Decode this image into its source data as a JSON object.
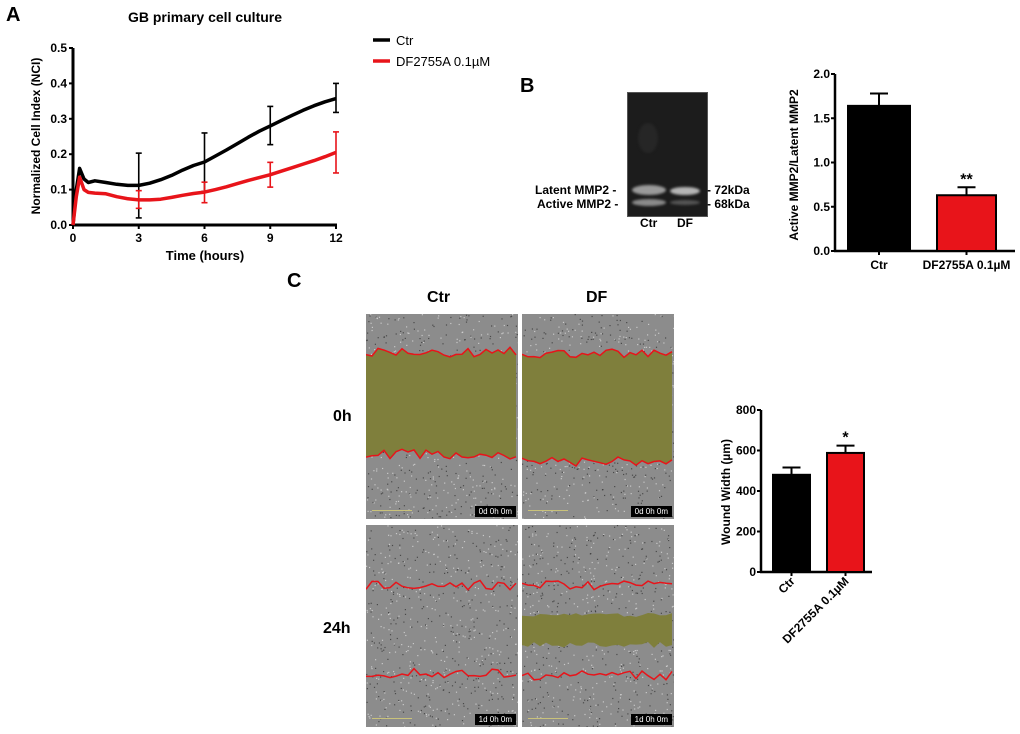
{
  "panels": {
    "A": {
      "letter": "A"
    },
    "B": {
      "letter": "B"
    },
    "C": {
      "letter": "C"
    }
  },
  "gel": {
    "left_labels": [
      "Latent MMP2 -",
      "Active MMP2 -"
    ],
    "right_labels": [
      "- 72kDa",
      "- 68kDa"
    ],
    "lanes": [
      "Ctr",
      "DF"
    ]
  },
  "microscopy": {
    "columns": [
      "Ctr",
      "DF"
    ],
    "rows": [
      "0h",
      "24h"
    ],
    "timestamps": [
      [
        "0d 0h 0m",
        "0d 0h 0m"
      ],
      [
        "1d 0h 0m",
        "1d 0h 0m"
      ]
    ],
    "colors": {
      "wound_fill": "#7f7f3c",
      "wound_edge": "#e8141a",
      "background": "#8c8c8c"
    }
  },
  "chart_data": [
    {
      "id": "A",
      "type": "line",
      "title": "GB primary cell culture",
      "xlabel": "Time (hours)",
      "ylabel": "Normalized Cell Index (NCI)",
      "xlim": [
        0,
        12
      ],
      "ylim": [
        0,
        0.5
      ],
      "xticks": [
        "0",
        "3",
        "6",
        "9",
        "12"
      ],
      "yticks": [
        "0.0",
        "0.1",
        "0.2",
        "0.3",
        "0.4",
        "0.5"
      ],
      "legend_position": "right",
      "series": [
        {
          "name": "Ctr",
          "color": "#000000",
          "x": [
            0,
            0.15,
            0.3,
            0.5,
            0.7,
            1,
            1.5,
            2,
            2.5,
            3,
            3.5,
            4,
            4.5,
            5,
            5.5,
            6,
            6.5,
            7,
            7.5,
            8,
            8.5,
            9,
            9.5,
            10,
            10.5,
            11,
            11.5,
            12
          ],
          "y": [
            0,
            0.1,
            0.16,
            0.13,
            0.12,
            0.125,
            0.12,
            0.115,
            0.112,
            0.112,
            0.118,
            0.128,
            0.14,
            0.155,
            0.168,
            0.178,
            0.195,
            0.212,
            0.23,
            0.248,
            0.265,
            0.28,
            0.295,
            0.31,
            0.324,
            0.337,
            0.348,
            0.357
          ],
          "error_x": [
            3,
            6,
            9,
            12
          ],
          "error_y": [
            [
              0.02,
              0.203
            ],
            [
              0.095,
              0.26
            ],
            [
              0.227,
              0.335
            ],
            [
              0.318,
              0.4
            ]
          ]
        },
        {
          "name": "DF2755A 0.1µM",
          "color": "#e8141a",
          "x": [
            0,
            0.15,
            0.3,
            0.5,
            0.7,
            1,
            1.5,
            2,
            2.5,
            3,
            3.5,
            4,
            4.5,
            5,
            5.5,
            6,
            6.5,
            7,
            7.5,
            8,
            8.5,
            9,
            9.5,
            10,
            10.5,
            11,
            11.5,
            12
          ],
          "y": [
            0,
            0.08,
            0.135,
            0.1,
            0.092,
            0.09,
            0.088,
            0.08,
            0.074,
            0.071,
            0.071,
            0.073,
            0.078,
            0.084,
            0.089,
            0.093,
            0.1,
            0.108,
            0.117,
            0.126,
            0.134,
            0.142,
            0.152,
            0.162,
            0.172,
            0.182,
            0.193,
            0.205
          ],
          "error_x": [
            3,
            6,
            9,
            12
          ],
          "error_y": [
            [
              0.047,
              0.097
            ],
            [
              0.063,
              0.121
            ],
            [
              0.107,
              0.177
            ],
            [
              0.147,
              0.263
            ]
          ]
        }
      ]
    },
    {
      "id": "B",
      "type": "bar",
      "categories": [
        "Ctr",
        "DF2755A 0.1µM"
      ],
      "values": [
        1.64,
        0.63
      ],
      "errors": [
        0.14,
        0.09
      ],
      "colors": [
        "#000000",
        "#e8141a"
      ],
      "annotations": [
        "",
        "**"
      ],
      "ylabel": "Active MMP2/Latent MMP2",
      "ylim": [
        0,
        2.0
      ],
      "yticks": [
        "0.0",
        "0.5",
        "1.0",
        "1.5",
        "2.0"
      ]
    },
    {
      "id": "C",
      "type": "bar",
      "categories": [
        "Ctr",
        "DF2755A 0.1µM"
      ],
      "values": [
        480,
        588
      ],
      "errors": [
        36,
        36
      ],
      "colors": [
        "#000000",
        "#e8141a"
      ],
      "annotations": [
        "",
        "*"
      ],
      "ylabel": "Wound Width (µm)",
      "ylim": [
        0,
        800
      ],
      "yticks": [
        "0",
        "200",
        "400",
        "600",
        "800"
      ]
    }
  ]
}
